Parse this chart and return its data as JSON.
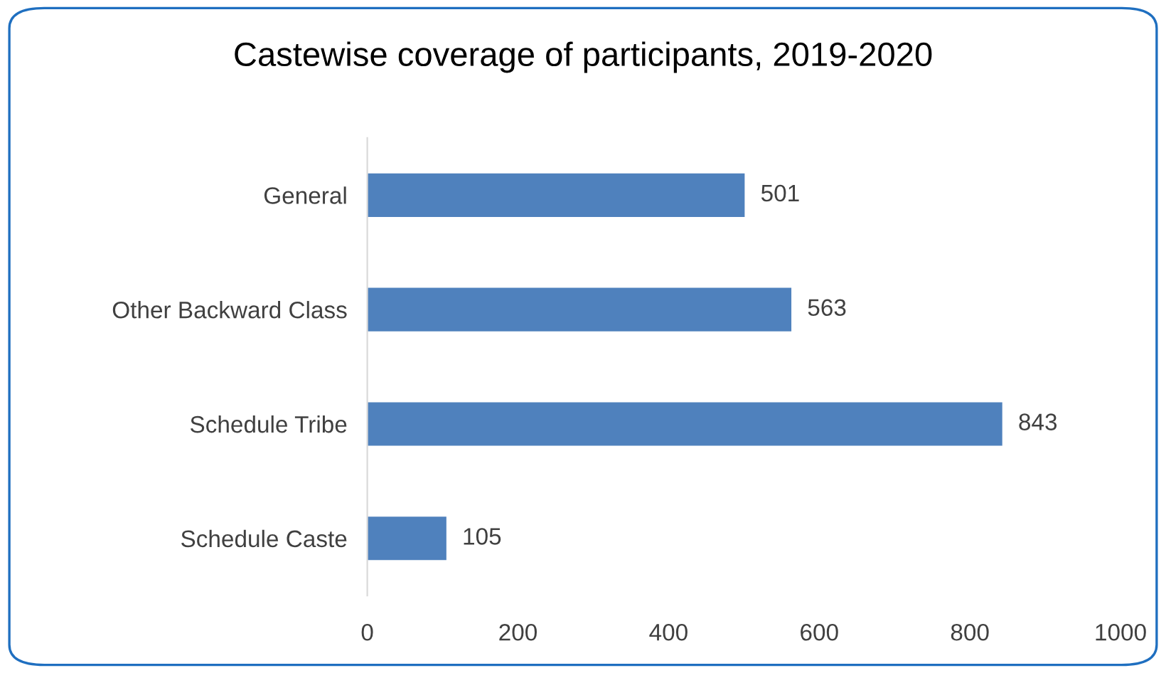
{
  "chart_data": {
    "type": "bar",
    "orientation": "horizontal",
    "title": "Castewise coverage of participants, 2019-2020",
    "categories": [
      "General",
      "Other Backward Class",
      "Schedule Tribe",
      "Schedule Caste"
    ],
    "values": [
      501,
      563,
      843,
      105
    ],
    "color": "#4f81bd",
    "xlim": [
      0,
      1000
    ],
    "xticks": [
      0,
      200,
      400,
      600,
      800,
      1000
    ],
    "grid": false,
    "data_labels": true,
    "legend": false
  }
}
